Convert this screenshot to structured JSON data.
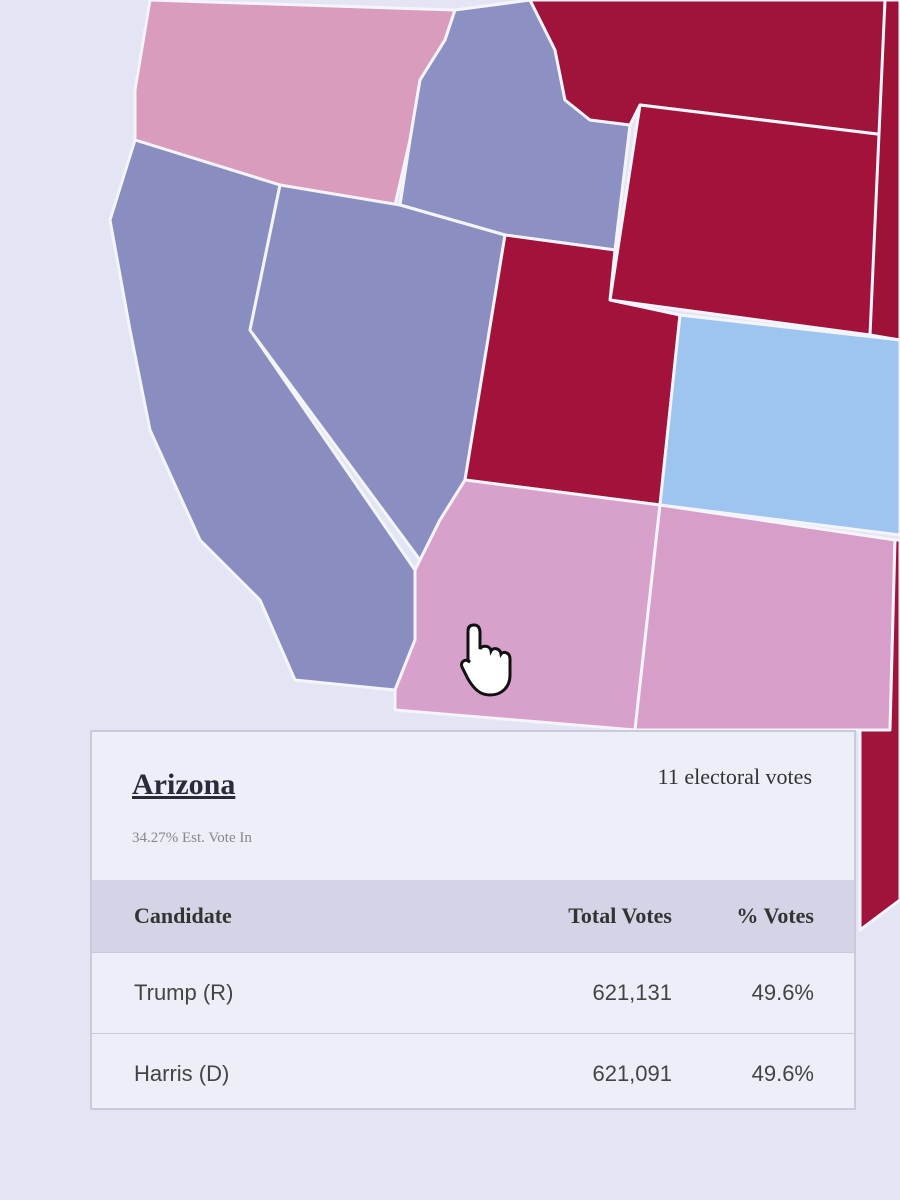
{
  "tooltip": {
    "title": "Arizona",
    "electoral_votes": "11 electoral votes",
    "vote_in": "34.27% Est. Vote In",
    "table": {
      "header": [
        "Candidate",
        "Total Votes",
        "% Votes"
      ],
      "rows": [
        [
          "Trump (R)",
          "621,131",
          "49.6%"
        ],
        [
          "Harris (D)",
          "621,091",
          "49.6%"
        ]
      ]
    }
  }
}
